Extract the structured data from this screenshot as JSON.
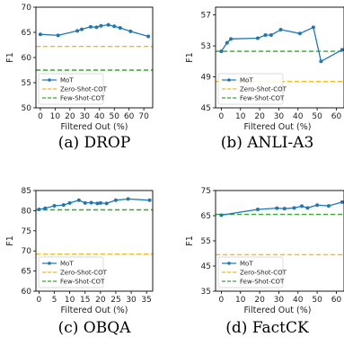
{
  "chart_data": [
    {
      "type": "line",
      "caption": "(a) DROP",
      "xlabel": "Filtered Out (%)",
      "ylabel": "F1",
      "xlim": [
        -3,
        76
      ],
      "ylim": [
        50,
        70
      ],
      "xticks": [
        0,
        10,
        20,
        30,
        40,
        50,
        60,
        70
      ],
      "yticks": [
        50,
        55,
        60,
        65,
        70
      ],
      "x": [
        0,
        12,
        25,
        28,
        34,
        38,
        41,
        46,
        50,
        54,
        61,
        73
      ],
      "series": [
        {
          "name": "MoT",
          "style": "line-marker",
          "color": "#1f77b4",
          "values": [
            64.6,
            64.4,
            65.3,
            65.6,
            66.1,
            66.0,
            66.3,
            66.5,
            66.2,
            65.9,
            65.2,
            64.2
          ]
        },
        {
          "name": "Zero-Shot-COT",
          "style": "dashed",
          "color": "#f5b623",
          "value": 62.2
        },
        {
          "name": "Few-Shot-COT",
          "style": "dashed",
          "color": "#3aa335",
          "value": 57.5
        }
      ],
      "legend": "bottom-left",
      "grid": false
    },
    {
      "type": "line",
      "caption": "(b) ANLI-A3",
      "xlabel": "Filtered Out (%)",
      "ylabel": "F1",
      "xlim": [
        -3,
        64
      ],
      "ylim": [
        45,
        58
      ],
      "xticks": [
        0,
        10,
        20,
        30,
        40,
        50,
        60
      ],
      "yticks": [
        45,
        49,
        53,
        57
      ],
      "x": [
        0,
        3,
        5,
        19,
        23,
        26,
        31,
        41,
        48,
        52,
        63
      ],
      "series": [
        {
          "name": "MoT",
          "style": "line-marker",
          "color": "#1f77b4",
          "values": [
            52.3,
            53.4,
            53.9,
            54.0,
            54.4,
            54.4,
            55.1,
            54.6,
            55.4,
            51.0,
            52.5
          ]
        },
        {
          "name": "Zero-Shot-COT",
          "style": "dashed",
          "color": "#f5b623",
          "value": 48.4
        },
        {
          "name": "Few-Shot-COT",
          "style": "dashed",
          "color": "#3aa335",
          "value": 52.3
        }
      ],
      "legend": "bottom-left",
      "grid": false
    },
    {
      "type": "line",
      "caption": "(c) OBQA",
      "xlabel": "Filtered Out (%)",
      "ylabel": "F1",
      "xlim": [
        -1,
        37
      ],
      "ylim": [
        60,
        85
      ],
      "xticks": [
        0,
        5,
        10,
        15,
        20,
        25,
        30,
        35
      ],
      "yticks": [
        60,
        65,
        70,
        75,
        80,
        85
      ],
      "x": [
        0,
        2,
        5,
        8,
        10,
        13,
        15,
        17,
        19,
        20,
        22,
        25,
        29,
        36
      ],
      "series": [
        {
          "name": "MoT",
          "style": "line-marker",
          "color": "#1f77b4",
          "values": [
            80.3,
            80.6,
            81.2,
            81.4,
            81.9,
            82.6,
            81.9,
            82.0,
            81.8,
            81.9,
            81.8,
            82.6,
            82.9,
            82.6
          ]
        },
        {
          "name": "Zero-Shot-COT",
          "style": "dashed",
          "color": "#f5b623",
          "value": 69.2
        },
        {
          "name": "Few-Shot-COT",
          "style": "dashed",
          "color": "#3aa335",
          "value": 80.2
        }
      ],
      "legend": "bottom-left",
      "grid": false
    },
    {
      "type": "line",
      "caption": "(d) FactCK",
      "xlabel": "Filtered Out (%)",
      "ylabel": "F1",
      "xlim": [
        -3,
        64
      ],
      "ylim": [
        35,
        75
      ],
      "xticks": [
        0,
        10,
        20,
        30,
        40,
        50,
        60
      ],
      "yticks": [
        35,
        45,
        55,
        65,
        75
      ],
      "x": [
        0,
        19,
        29,
        33,
        38,
        42,
        45,
        50,
        56,
        63
      ],
      "series": [
        {
          "name": "MoT",
          "style": "line-marker",
          "color": "#1f77b4",
          "values": [
            65.2,
            67.5,
            68.0,
            67.8,
            68.1,
            68.8,
            68.1,
            69.2,
            68.9,
            70.4
          ]
        },
        {
          "name": "Zero-Shot-COT",
          "style": "dashed",
          "color": "#f5b623",
          "value": 49.5
        },
        {
          "name": "Few-Shot-COT",
          "style": "dashed",
          "color": "#3aa335",
          "value": 65.5
        }
      ],
      "legend": "bottom-left",
      "grid": false
    }
  ]
}
